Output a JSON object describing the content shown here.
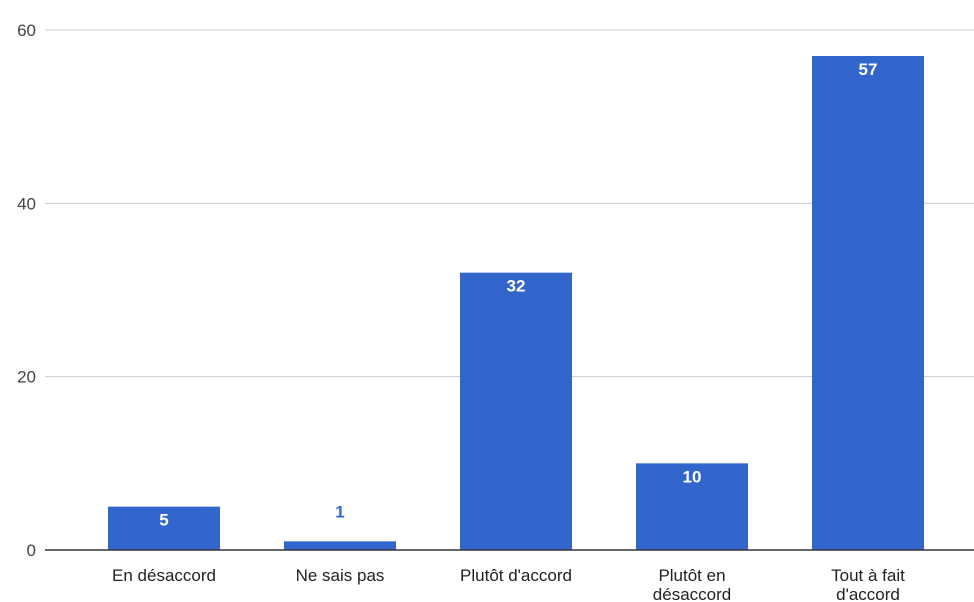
{
  "chart_data": {
    "type": "bar",
    "title": "",
    "xlabel": "",
    "ylabel": "",
    "categories": [
      [
        "En désaccord"
      ],
      [
        "Ne sais pas"
      ],
      [
        "Plutôt d'accord"
      ],
      [
        "Plutôt en",
        "désaccord"
      ],
      [
        "Tout à fait",
        "d'accord"
      ]
    ],
    "values": [
      5,
      1,
      32,
      10,
      57
    ],
    "ylim": [
      0,
      60
    ],
    "yticks": [
      "0",
      "20",
      "40",
      "60"
    ],
    "grid": true,
    "legend": "none",
    "colors": {
      "bar": "#3366cc",
      "label_inside": "#ffffff",
      "label_outside": "#3366cc",
      "grid": "#cccccc",
      "baseline": "#333333"
    }
  }
}
